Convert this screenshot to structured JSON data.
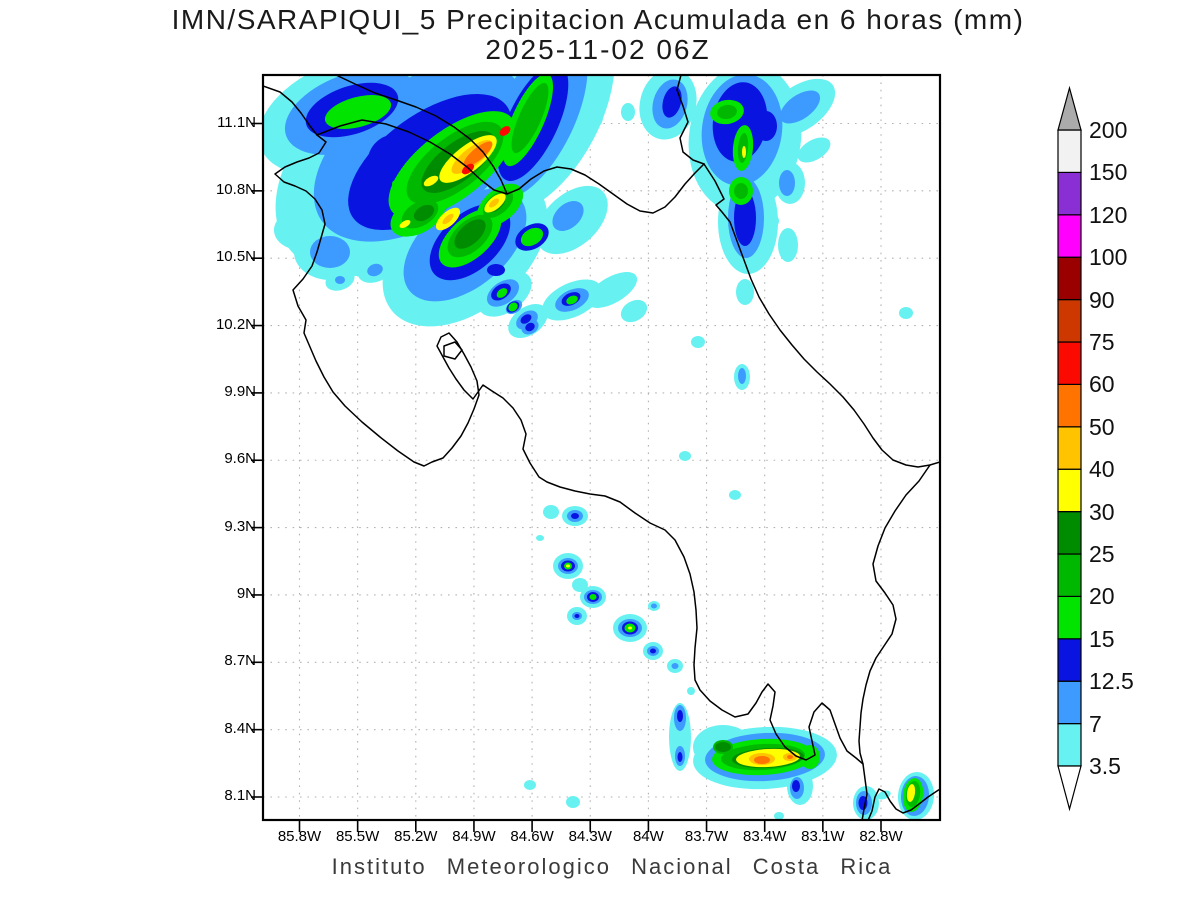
{
  "title": {
    "line1": "IMN/SARAPIQUI_5 Precipitacion Acumulada en 6 horas (mm)",
    "line2": "2025-11-02 06Z"
  },
  "caption": "Instituto Meteorologico Nacional Costa Rica",
  "axes": {
    "lat_ticks": [
      "11.1N",
      "10.8N",
      "10.5N",
      "10.2N",
      "9.9N",
      "9.6N",
      "9.3N",
      "9N",
      "8.7N",
      "8.4N",
      "8.1N"
    ],
    "lon_ticks": [
      "85.8W",
      "85.5W",
      "85.2W",
      "84.9W",
      "84.6W",
      "84.3W",
      "84W",
      "83.7W",
      "83.4W",
      "83.1W",
      "82.8W"
    ]
  },
  "colorbar": {
    "labels_bottom_to_top": [
      "3.5",
      "7",
      "12.5",
      "15",
      "20",
      "25",
      "30",
      "40",
      "50",
      "60",
      "75",
      "90",
      "100",
      "120",
      "150",
      "200"
    ],
    "colors_bottom_to_top": [
      "#68F1F1",
      "#3D9BFF",
      "#0A14E1",
      "#00E400",
      "#00B800",
      "#008C00",
      "#FFFF00",
      "#FFC300",
      "#FF7300",
      "#FA0A00",
      "#CC3800",
      "#9A0000",
      "#FF00FF",
      "#8A2FD4",
      "#F2F2F2"
    ],
    "arrow_top_color": "#ABABAB",
    "arrow_bottom_color": "#FFFFFF"
  },
  "chart_data": {
    "type": "heatmap",
    "subtype": "shaded-contour precipitation map over Costa Rica",
    "title": "IMN/SARAPIQUI_5 Precipitacion Acumulada en 6 horas (mm)",
    "valid_time": "2025-11-02 06Z",
    "units": "mm",
    "source": "Instituto Meteorologico Nacional Costa Rica",
    "lon_range_deg_w": [
      86.0,
      82.5
    ],
    "lat_range_deg_n": [
      7.98,
      11.32
    ],
    "levels_mm": [
      3.5,
      7,
      12.5,
      15,
      20,
      25,
      30,
      40,
      50,
      60,
      75,
      90,
      100,
      120,
      150,
      200
    ],
    "grid": true,
    "legend_position": "right-vertical-colorbar",
    "cells": [
      {
        "area": "Nicaragua border / NW Guanacaste diagonal band",
        "approx_center": "84.95W 10.95N",
        "peak_band_mm": "60-75"
      },
      {
        "area": "streak reaching top edge of domain",
        "approx_center": "84.55W 11.25N",
        "peak_band_mm": "50-60"
      },
      {
        "area": "northern Caribbean coast cluster",
        "approx_center": "83.45W 11.0N",
        "peak_band_mm": "30-40"
      },
      {
        "area": "scattered cells north of Gulf of Nicoya",
        "approx_center": "84.65W 10.2N",
        "peak_band_mm": "15-20"
      },
      {
        "area": "central Pacific coastal chain",
        "approx_center": "84.25W 8.95N",
        "peak_band_mm": "30-40"
      },
      {
        "area": "Osa / Golfo Dulce - Panama border blob",
        "approx_center": "83.4W 8.25N",
        "peak_band_mm": "50-60"
      },
      {
        "area": "east of Punta Burica",
        "approx_center": "82.75W 8.15N",
        "peak_band_mm": "30-40"
      }
    ],
    "palette": {
      "c": "#68F1F1",
      "b": "#3D9BFF",
      "d": "#0A14E1",
      "g": "#00E400",
      "G": "#00B800",
      "D": "#008C00",
      "y": "#FFFF00",
      "o": "#FFC300",
      "O": "#FF7300",
      "r": "#FA0A00"
    },
    "blobs": [
      [
        "c",
        410,
        160,
        150,
        95,
        -35
      ],
      [
        "c",
        350,
        115,
        95,
        55,
        -20
      ],
      [
        "c",
        540,
        112,
        60,
        112,
        28
      ],
      [
        "c",
        465,
        250,
        95,
        60,
        -40
      ],
      [
        "c",
        330,
        252,
        36,
        28,
        0
      ],
      [
        "c",
        300,
        230,
        26,
        20,
        0
      ],
      [
        "c",
        573,
        100,
        24,
        12,
        -40
      ],
      [
        "c",
        592,
        122,
        12,
        8,
        -35
      ],
      [
        "c",
        572,
        220,
        42,
        26,
        -42
      ],
      [
        "c",
        420,
        278,
        22,
        14,
        -25
      ],
      [
        "c",
        375,
        270,
        18,
        12,
        -20
      ],
      [
        "c",
        340,
        280,
        15,
        10,
        -20
      ],
      [
        "c",
        458,
        288,
        16,
        10,
        -20
      ],
      [
        "c",
        435,
        268,
        18,
        14,
        0
      ],
      [
        "c",
        668,
        104,
        28,
        36,
        15
      ],
      [
        "c",
        628,
        112,
        7,
        9,
        0
      ],
      [
        "c",
        745,
        138,
        56,
        75,
        8
      ],
      [
        "c",
        748,
        222,
        30,
        52,
        0
      ],
      [
        "c",
        800,
        108,
        40,
        22,
        -35
      ],
      [
        "c",
        814,
        150,
        18,
        10,
        -30
      ],
      [
        "c",
        790,
        183,
        15,
        21,
        0
      ],
      [
        "c",
        771,
        221,
        8,
        7,
        0
      ],
      [
        "c",
        788,
        245,
        10,
        17,
        0
      ],
      [
        "c",
        745,
        292,
        9,
        13,
        0
      ],
      [
        "c",
        480,
        268,
        28,
        14,
        -25
      ],
      [
        "c",
        505,
        294,
        30,
        18,
        -35
      ],
      [
        "c",
        528,
        321,
        22,
        14,
        -35
      ],
      [
        "c",
        572,
        300,
        32,
        17,
        -25
      ],
      [
        "c",
        612,
        290,
        28,
        13,
        -30
      ],
      [
        "c",
        634,
        311,
        14,
        10,
        -30
      ],
      [
        "c",
        698,
        342,
        7,
        6,
        0
      ],
      [
        "c",
        906,
        313,
        7,
        6,
        0
      ],
      [
        "c",
        742,
        377,
        8,
        13,
        0
      ],
      [
        "c",
        685,
        456,
        6,
        5,
        0
      ],
      [
        "c",
        551,
        512,
        8,
        7,
        0
      ],
      [
        "c",
        575,
        516,
        13,
        10,
        0
      ],
      [
        "c",
        540,
        538,
        4,
        3,
        0
      ],
      [
        "c",
        568,
        566,
        15,
        13,
        0
      ],
      [
        "c",
        580,
        585,
        8,
        7,
        0
      ],
      [
        "c",
        593,
        597,
        13,
        11,
        0
      ],
      [
        "c",
        577,
        616,
        10,
        9,
        0
      ],
      [
        "c",
        630,
        628,
        17,
        14,
        0
      ],
      [
        "c",
        653,
        651,
        10,
        9,
        0
      ],
      [
        "c",
        675,
        666,
        8,
        7,
        0
      ],
      [
        "c",
        735,
        495,
        6,
        5,
        0
      ],
      [
        "c",
        654,
        606,
        6,
        5,
        0
      ],
      [
        "c",
        680,
        737,
        11,
        34,
        0
      ],
      [
        "c",
        691,
        691,
        4,
        4,
        0
      ],
      [
        "c",
        723,
        747,
        30,
        22,
        0
      ],
      [
        "c",
        765,
        758,
        72,
        31,
        -3
      ],
      [
        "c",
        800,
        786,
        13,
        19,
        0
      ],
      [
        "c",
        866,
        803,
        13,
        17,
        0
      ],
      [
        "c",
        884,
        795,
        7,
        4,
        -20
      ],
      [
        "c",
        916,
        796,
        18,
        24,
        5
      ],
      [
        "c",
        779,
        816,
        5,
        4,
        0
      ],
      [
        "c",
        530,
        785,
        6,
        5,
        0
      ],
      [
        "c",
        573,
        802,
        7,
        6,
        0
      ],
      [
        "b",
        420,
        152,
        120,
        70,
        -35
      ],
      [
        "b",
        352,
        112,
        70,
        38,
        -20
      ],
      [
        "b",
        536,
        118,
        38,
        88,
        26
      ],
      [
        "b",
        465,
        245,
        72,
        42,
        -40
      ],
      [
        "b",
        330,
        252,
        20,
        16,
        0
      ],
      [
        "b",
        568,
        216,
        18,
        12,
        -42
      ],
      [
        "b",
        375,
        270,
        8,
        6,
        -20
      ],
      [
        "b",
        435,
        268,
        12,
        10,
        0
      ],
      [
        "b",
        340,
        280,
        5,
        4,
        0
      ],
      [
        "b",
        670,
        104,
        17,
        25,
        15
      ],
      [
        "b",
        742,
        130,
        40,
        56,
        8
      ],
      [
        "b",
        746,
        218,
        18,
        40,
        0
      ],
      [
        "b",
        800,
        107,
        23,
        12,
        -35
      ],
      [
        "b",
        787,
        183,
        8,
        13,
        0
      ],
      [
        "b",
        475,
        267,
        14,
        8,
        -25
      ],
      [
        "b",
        503,
        293,
        18,
        11,
        -35
      ],
      [
        "b",
        514,
        307,
        9,
        6,
        -35
      ],
      [
        "b",
        527,
        320,
        12,
        8,
        -35
      ],
      [
        "b",
        530,
        327,
        9,
        7,
        -30
      ],
      [
        "b",
        572,
        300,
        18,
        10,
        -25
      ],
      [
        "b",
        742,
        376,
        4,
        8,
        0
      ],
      [
        "b",
        575,
        516,
        8,
        6,
        0
      ],
      [
        "b",
        568,
        566,
        10,
        8,
        0
      ],
      [
        "b",
        593,
        597,
        9,
        7,
        0
      ],
      [
        "b",
        577,
        616,
        5,
        4,
        0
      ],
      [
        "b",
        630,
        628,
        12,
        9,
        0
      ],
      [
        "b",
        653,
        651,
        6,
        5,
        0
      ],
      [
        "b",
        654,
        606,
        3,
        2.5,
        0
      ],
      [
        "b",
        675,
        666,
        3.5,
        3,
        0
      ],
      [
        "b",
        680,
        718,
        6,
        13,
        0
      ],
      [
        "b",
        680,
        756,
        5,
        10,
        0
      ],
      [
        "b",
        765,
        757,
        60,
        24,
        -3
      ],
      [
        "b",
        797,
        788,
        7,
        11,
        0
      ],
      [
        "b",
        864,
        803,
        8,
        12,
        0
      ],
      [
        "b",
        915,
        796,
        14,
        20,
        5
      ],
      [
        "d",
        430,
        162,
        95,
        48,
        -36
      ],
      [
        "d",
        352,
        110,
        48,
        24,
        -18
      ],
      [
        "d",
        533,
        122,
        25,
        64,
        25
      ],
      [
        "d",
        470,
        242,
        48,
        28,
        -42
      ],
      [
        "d",
        393,
        165,
        26,
        30,
        0
      ],
      [
        "d",
        532,
        237,
        18,
        12,
        -30
      ],
      [
        "d",
        496,
        270,
        9,
        6,
        0
      ],
      [
        "d",
        672,
        102,
        9,
        16,
        15
      ],
      [
        "d",
        740,
        122,
        27,
        40,
        8
      ],
      [
        "d",
        766,
        126,
        11,
        15,
        0
      ],
      [
        "d",
        745,
        218,
        11,
        28,
        0
      ],
      [
        "d",
        474,
        266,
        7,
        4,
        -25
      ],
      [
        "d",
        501,
        292,
        11,
        7,
        -35
      ],
      [
        "d",
        513,
        307,
        7,
        5,
        -35
      ],
      [
        "d",
        526,
        319,
        6,
        4,
        -35
      ],
      [
        "d",
        530,
        327,
        5,
        4,
        -30
      ],
      [
        "d",
        571,
        299,
        10,
        6,
        -25
      ],
      [
        "d",
        575,
        516,
        4,
        3,
        0
      ],
      [
        "d",
        568,
        566,
        7,
        5.5,
        0
      ],
      [
        "d",
        593,
        597,
        6,
        5,
        0
      ],
      [
        "d",
        577,
        616,
        2.5,
        2,
        0
      ],
      [
        "d",
        630,
        628,
        8,
        6.5,
        0
      ],
      [
        "d",
        653,
        651,
        3,
        2.5,
        0
      ],
      [
        "d",
        680,
        716,
        3,
        6,
        0
      ],
      [
        "d",
        680,
        757,
        2.5,
        5,
        0
      ],
      [
        "d",
        796,
        786,
        4,
        6,
        0
      ],
      [
        "d",
        863,
        803,
        4.5,
        7,
        0
      ],
      [
        "g",
        452,
        165,
        76,
        34,
        -38
      ],
      [
        "g",
        358,
        112,
        34,
        15,
        -15
      ],
      [
        "g",
        528,
        120,
        16,
        50,
        24
      ],
      [
        "g",
        470,
        238,
        38,
        20,
        -42
      ],
      [
        "g",
        418,
        215,
        30,
        18,
        -30
      ],
      [
        "g",
        500,
        205,
        27,
        16,
        -40
      ],
      [
        "g",
        532,
        237,
        12,
        8,
        -30
      ],
      [
        "g",
        396,
        184,
        4,
        4,
        0
      ],
      [
        "g",
        727,
        112,
        17,
        12,
        -10
      ],
      [
        "g",
        743,
        148,
        10,
        23,
        5
      ],
      [
        "g",
        741,
        191,
        12,
        14,
        0
      ],
      [
        "g",
        502,
        293,
        6,
        4,
        -40
      ],
      [
        "g",
        513,
        307,
        5,
        4,
        -40
      ],
      [
        "g",
        572,
        300,
        6,
        4,
        -25
      ],
      [
        "g",
        568,
        566,
        4,
        3.5,
        0
      ],
      [
        "g",
        593,
        597,
        3.5,
        3,
        0
      ],
      [
        "g",
        630,
        628,
        5.5,
        4.5,
        0
      ],
      [
        "g",
        763,
        757,
        51,
        18,
        -3
      ],
      [
        "g",
        810,
        757,
        10,
        12,
        0
      ],
      [
        "g",
        913,
        795,
        10,
        17,
        8
      ],
      [
        "G",
        455,
        163,
        58,
        26,
        -38
      ],
      [
        "G",
        530,
        118,
        11,
        38,
        24
      ],
      [
        "G",
        470,
        236,
        27,
        15,
        -42
      ],
      [
        "G",
        420,
        214,
        20,
        12,
        -30
      ],
      [
        "G",
        498,
        204,
        18,
        10,
        -40
      ],
      [
        "G",
        727,
        112,
        10,
        7,
        -10
      ],
      [
        "G",
        743,
        148,
        5,
        15,
        5
      ],
      [
        "G",
        741,
        191,
        7,
        8,
        0
      ],
      [
        "G",
        763,
        757,
        42,
        13,
        -3
      ],
      [
        "G",
        723,
        747,
        10,
        7,
        0
      ],
      [
        "G",
        913,
        794,
        7,
        13,
        8
      ],
      [
        "D",
        458,
        162,
        44,
        19,
        -38
      ],
      [
        "D",
        470,
        234,
        19,
        10,
        -42
      ],
      [
        "D",
        424,
        213,
        11,
        7,
        -30
      ],
      [
        "D",
        496,
        204,
        11,
        6,
        -40
      ],
      [
        "D",
        723,
        747,
        8,
        5,
        0
      ],
      [
        "D",
        768,
        758,
        36,
        10,
        -3
      ],
      [
        "y",
        468,
        159,
        35,
        13,
        -38
      ],
      [
        "y",
        448,
        219,
        15,
        7,
        -42
      ],
      [
        "y",
        495,
        203,
        13,
        6,
        -40
      ],
      [
        "y",
        431,
        181,
        8,
        4,
        -30
      ],
      [
        "y",
        405,
        224,
        6,
        3,
        -30
      ],
      [
        "y",
        744,
        152,
        2,
        6,
        0
      ],
      [
        "y",
        568,
        566,
        2,
        1.5,
        0
      ],
      [
        "y",
        630,
        628,
        2,
        1.5,
        0
      ],
      [
        "y",
        768,
        758,
        32,
        9,
        -3
      ],
      [
        "y",
        911,
        793,
        4,
        9,
        8
      ],
      [
        "o",
        472,
        157,
        25,
        9,
        -38
      ],
      [
        "o",
        448,
        219,
        7,
        3,
        -42
      ],
      [
        "o",
        494,
        203,
        6,
        3,
        -40
      ],
      [
        "o",
        762,
        759,
        13,
        6,
        0
      ],
      [
        "o",
        790,
        757,
        7,
        4,
        0
      ],
      [
        "O",
        478,
        154,
        18,
        6,
        -40
      ],
      [
        "O",
        762,
        760,
        8,
        4,
        0
      ],
      [
        "O",
        790,
        757,
        3,
        2,
        0
      ],
      [
        "r",
        468,
        169,
        7,
        4,
        -38
      ],
      [
        "r",
        505,
        131,
        6,
        4,
        -38
      ]
    ]
  }
}
